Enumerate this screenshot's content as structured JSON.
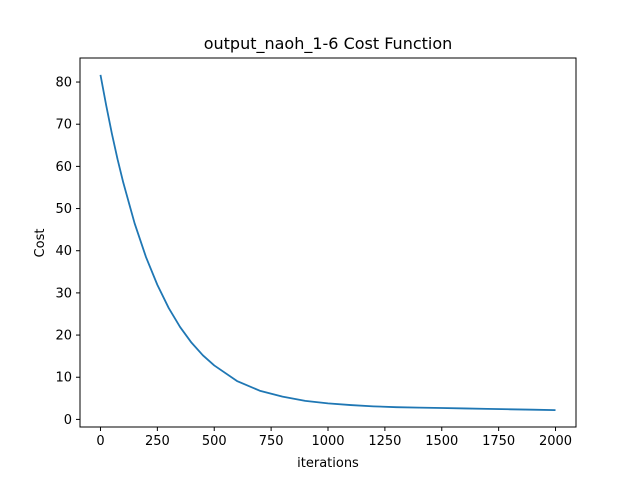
{
  "chart_data": {
    "type": "line",
    "title": "output_naoh_1-6 Cost Function",
    "xlabel": "iterations",
    "ylabel": "Cost",
    "xlim": [
      -90,
      2090
    ],
    "ylim": [
      -1.8,
      85.7
    ],
    "xticks": [
      0,
      250,
      500,
      750,
      1000,
      1250,
      1500,
      1750,
      2000
    ],
    "yticks": [
      0,
      10,
      20,
      30,
      40,
      50,
      60,
      70,
      80
    ],
    "grid": false,
    "series": [
      {
        "color": "#1f77b4",
        "x": [
          0,
          25,
          50,
          75,
          100,
          150,
          200,
          250,
          300,
          350,
          400,
          450,
          500,
          600,
          700,
          800,
          900,
          1000,
          1100,
          1200,
          1300,
          1400,
          1500,
          1600,
          1700,
          1800,
          1900,
          2000
        ],
        "y": [
          81.7,
          74.5,
          67.8,
          61.7,
          56.2,
          46.5,
          38.5,
          31.9,
          26.4,
          21.9,
          18.2,
          15.2,
          12.8,
          9.1,
          6.8,
          5.4,
          4.4,
          3.8,
          3.4,
          3.1,
          2.9,
          2.8,
          2.7,
          2.6,
          2.5,
          2.4,
          2.3,
          2.2
        ]
      }
    ]
  }
}
